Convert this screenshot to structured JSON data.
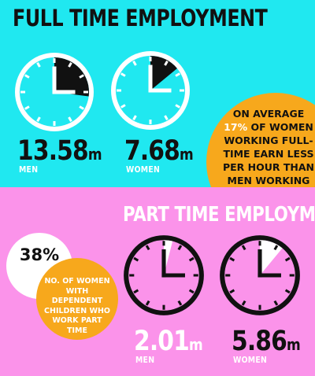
{
  "full_time": {
    "heading": "FULL TIME EMPLOYMENT",
    "men": {
      "value": "13.58",
      "unit": "m",
      "label": "MEN",
      "clock_fraction": 0.27
    },
    "women": {
      "value": "7.68",
      "unit": "m",
      "label": "WOMEN",
      "clock_fraction": 0.14
    },
    "callout": {
      "pre": "ON AVERAGE ",
      "highlight": "17%",
      "post": " OF WOMEN WORKING FULL-TIME EARN LESS PER HOUR THAN MEN WORKING FULL TIME"
    }
  },
  "part_time": {
    "heading": "PART TIME EMPLOYMENT",
    "percent": "38%",
    "percent_label": "NO. OF WOMEN WITH DEPENDENT CHILDREN WHO WORK PART TIME",
    "men": {
      "value": "2.01",
      "unit": "m",
      "label": "MEN",
      "clock_fraction": 0.04
    },
    "women": {
      "value": "5.86",
      "unit": "m",
      "label": "WOMEN",
      "clock_fraction": 0.11
    }
  },
  "colors": {
    "cyan": "#20e8f0",
    "pink": "#fb93ea",
    "orange": "#f7a81c",
    "dark": "#111111",
    "white": "#ffffff"
  }
}
